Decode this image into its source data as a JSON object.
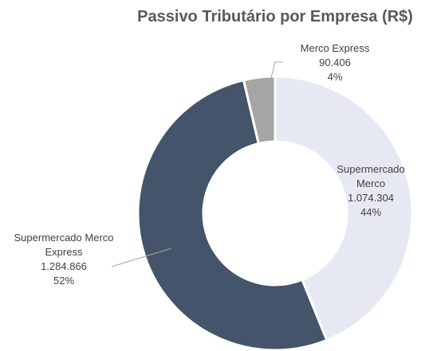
{
  "chart_data": {
    "type": "donut",
    "title": "Passivo Tributário por Empresa (R$)",
    "categories": [
      "Supermercado Merco",
      "Supermercado Merco Express",
      "Merco Express"
    ],
    "values": [
      1074304,
      1284866,
      90406
    ],
    "value_labels": [
      "1.074.304",
      "1.284.866",
      "90.406"
    ],
    "percent_labels": [
      "44%",
      "52%",
      "4%"
    ],
    "colors": [
      "#e6e9f4",
      "#44546a",
      "#a5a5a5"
    ]
  }
}
